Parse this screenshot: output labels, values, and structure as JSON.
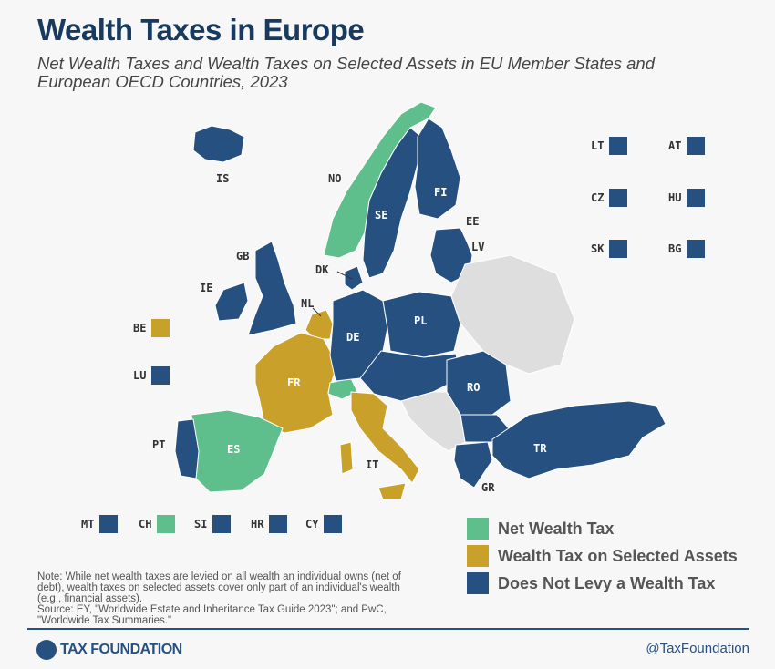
{
  "title": "Wealth Taxes in Europe",
  "subtitle": "Net Wealth Taxes and Wealth Taxes on Selected Assets in EU Member States and European OECD Countries, 2023",
  "colors": {
    "net_wealth_tax": "#5fbf8c",
    "selected_assets": "#c9a02a",
    "no_wealth_tax": "#255080",
    "not_included": "#dedede",
    "title": "#173a5e"
  },
  "map_labels": [
    {
      "code": "IS",
      "category": "no_wealth_tax"
    },
    {
      "code": "NO",
      "category": "net_wealth_tax"
    },
    {
      "code": "SE",
      "category": "no_wealth_tax"
    },
    {
      "code": "FI",
      "category": "no_wealth_tax"
    },
    {
      "code": "EE",
      "category": "no_wealth_tax"
    },
    {
      "code": "LV",
      "category": "no_wealth_tax"
    },
    {
      "code": "DK",
      "category": "no_wealth_tax"
    },
    {
      "code": "GB",
      "category": "no_wealth_tax"
    },
    {
      "code": "IE",
      "category": "no_wealth_tax"
    },
    {
      "code": "NL",
      "category": "selected_assets"
    },
    {
      "code": "DE",
      "category": "no_wealth_tax"
    },
    {
      "code": "PL",
      "category": "no_wealth_tax"
    },
    {
      "code": "FR",
      "category": "selected_assets"
    },
    {
      "code": "RO",
      "category": "no_wealth_tax"
    },
    {
      "code": "ES",
      "category": "net_wealth_tax"
    },
    {
      "code": "PT",
      "category": "no_wealth_tax"
    },
    {
      "code": "IT",
      "category": "selected_assets"
    },
    {
      "code": "GR",
      "category": "no_wealth_tax"
    },
    {
      "code": "TR",
      "category": "no_wealth_tax"
    }
  ],
  "small_countries": [
    {
      "code": "LT",
      "category": "no_wealth_tax"
    },
    {
      "code": "AT",
      "category": "no_wealth_tax"
    },
    {
      "code": "CZ",
      "category": "no_wealth_tax"
    },
    {
      "code": "HU",
      "category": "no_wealth_tax"
    },
    {
      "code": "SK",
      "category": "no_wealth_tax"
    },
    {
      "code": "BG",
      "category": "no_wealth_tax"
    },
    {
      "code": "BE",
      "category": "selected_assets"
    },
    {
      "code": "LU",
      "category": "no_wealth_tax"
    },
    {
      "code": "MT",
      "category": "no_wealth_tax"
    },
    {
      "code": "CH",
      "category": "net_wealth_tax"
    },
    {
      "code": "SI",
      "category": "no_wealth_tax"
    },
    {
      "code": "HR",
      "category": "no_wealth_tax"
    },
    {
      "code": "CY",
      "category": "no_wealth_tax"
    }
  ],
  "legend": [
    {
      "label": "Net Wealth Tax",
      "category": "net_wealth_tax"
    },
    {
      "label": "Wealth Tax on Selected Assets",
      "category": "selected_assets"
    },
    {
      "label": "Does Not Levy a Wealth Tax",
      "category": "no_wealth_tax"
    }
  ],
  "note": "Note: While net wealth taxes are levied on all wealth an individual owns (net of debt), wealth taxes on selected assets cover only part of an individual's wealth (e.g., financial assets).",
  "source": "Source: EY, \"Worldwide Estate and Inheritance Tax Guide 2023\"; and PwC, \"Worldwide Tax Summaries.\"",
  "footer": {
    "logo": "TAX FOUNDATION",
    "handle": "@TaxFoundation"
  }
}
